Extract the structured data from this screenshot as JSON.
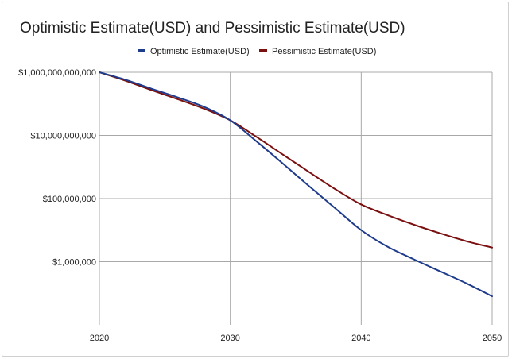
{
  "chart_data": {
    "type": "line",
    "title": "Optimistic Estimate(USD) and Pessimistic Estimate(USD)",
    "xlabel": "",
    "ylabel": "",
    "x_ticks": [
      "2020",
      "2030",
      "2040",
      "2050"
    ],
    "y_ticks": [
      "$1,000,000",
      "$100,000,000",
      "$10,000,000,000",
      "$1,000,000,000,000"
    ],
    "y_scale": "log",
    "xlim": [
      2020,
      2050
    ],
    "ylim": [
      10000,
      1000000000000
    ],
    "grid": true,
    "legend_position": "top",
    "x": [
      2020,
      2022,
      2024,
      2026,
      2028,
      2030,
      2032,
      2034,
      2036,
      2038,
      2040,
      2042,
      2044,
      2046,
      2048,
      2050
    ],
    "series": [
      {
        "name": "Optimistic Estimate(USD)",
        "color": "#1f3c8c",
        "values": [
          1000000000000,
          580000000000,
          300000000000,
          160000000000,
          80000000000,
          30000000000,
          6500000000,
          1300000000,
          250000000,
          50000000,
          10000000,
          3000000,
          1200000,
          500000,
          210000,
          80000
        ]
      },
      {
        "name": "Pessimistic Estimate(USD)",
        "color": "#7a1010",
        "values": [
          1000000000000,
          540000000000,
          270000000000,
          140000000000,
          70000000000,
          30000000000,
          9000000000,
          2500000000,
          700000000,
          200000000,
          65000000,
          30000000,
          15000000,
          8000000,
          4500000,
          2800000
        ]
      }
    ]
  }
}
